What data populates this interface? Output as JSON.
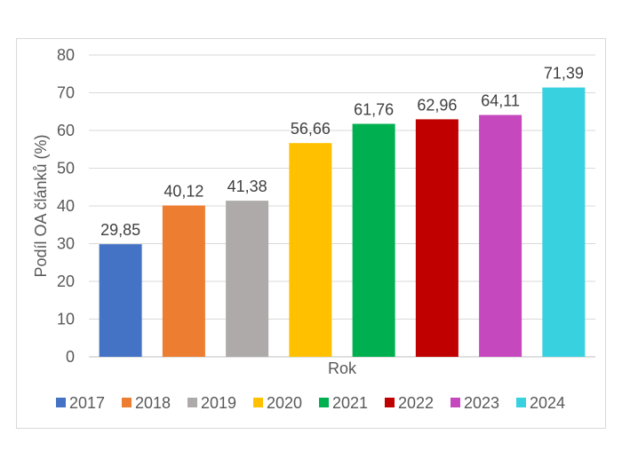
{
  "chart_data": {
    "type": "bar",
    "categories": [
      "2017",
      "2018",
      "2019",
      "2020",
      "2021",
      "2022",
      "2023",
      "2024"
    ],
    "values": [
      29.85,
      40.12,
      41.38,
      56.66,
      61.76,
      62.96,
      64.11,
      71.39
    ],
    "data_labels": [
      "29,85",
      "40,12",
      "41,38",
      "56,66",
      "61,76",
      "62,96",
      "64,11",
      "71,39"
    ],
    "colors": [
      "#4472c4",
      "#ed7d31",
      "#aeaaaa",
      "#ffc000",
      "#00b050",
      "#c00000",
      "#c548be",
      "#38d1e0"
    ],
    "title": "",
    "xlabel": "Rok",
    "ylabel": "Podíl OA článků (%)",
    "ylim": [
      0,
      80
    ],
    "yticks": [
      0,
      10,
      20,
      30,
      40,
      50,
      60,
      70,
      80
    ],
    "grid": true,
    "legend": {
      "position": "bottom",
      "entries": [
        "2017",
        "2018",
        "2019",
        "2020",
        "2021",
        "2022",
        "2023",
        "2024"
      ]
    }
  }
}
